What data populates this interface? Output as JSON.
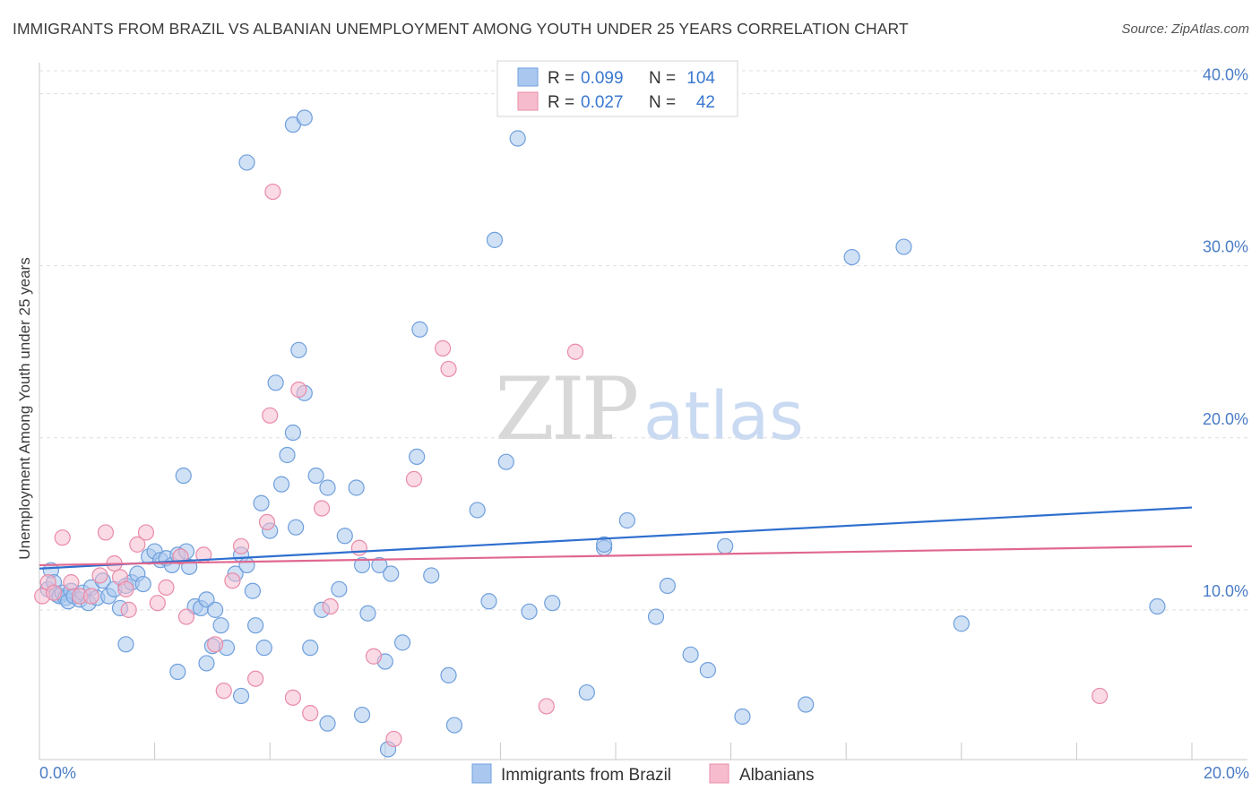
{
  "header": {
    "title": "IMMIGRANTS FROM BRAZIL VS ALBANIAN UNEMPLOYMENT AMONG YOUTH UNDER 25 YEARS CORRELATION CHART",
    "source": "Source: ZipAtlas.com"
  },
  "watermark": {
    "zip": "ZIP",
    "atlas": "atlas"
  },
  "stats": {
    "r_label": "R =",
    "n_label": "N =",
    "brazil": {
      "r": "0.099",
      "n": "104"
    },
    "albanians": {
      "r": "0.027",
      "n": "42"
    }
  },
  "legend": {
    "brazil": "Immigrants from Brazil",
    "albanians": "Albanians"
  },
  "colors": {
    "brazil_fill": "#aac8ef",
    "brazil_stroke": "#6f9fdc",
    "brazil_line": "#2f6fcf",
    "albanian_fill": "#f6bccd",
    "albanian_stroke": "#e98ba8",
    "albanian_line": "#e06890",
    "axis_label": "#4a7cc6"
  },
  "chart_data": {
    "type": "scatter",
    "title": "IMMIGRANTS FROM BRAZIL VS ALBANIAN UNEMPLOYMENT AMONG YOUTH UNDER 25 YEARS CORRELATION CHART",
    "xlabel": "",
    "ylabel": "Unemployment Among Youth under 25 years",
    "xlim": [
      0,
      20
    ],
    "ylim": [
      1.3,
      41.8
    ],
    "x_tick_labels": [
      "0.0%",
      "20.0%"
    ],
    "y_ticks": [
      {
        "value": 10,
        "label": "10.0%"
      },
      {
        "value": 20,
        "label": "20.0%"
      },
      {
        "value": 30,
        "label": "30.0%"
      },
      {
        "value": 40,
        "label": "40.0%"
      }
    ],
    "grid": true,
    "series": [
      {
        "name": "Immigrants from Brazil",
        "color": "#6f9fdc",
        "trend": {
          "x": [
            0,
            20
          ],
          "y": [
            12.4,
            15.95
          ]
        },
        "points": [
          [
            0.15,
            11.2
          ],
          [
            0.2,
            12.3
          ],
          [
            0.25,
            11.6
          ],
          [
            0.3,
            10.9
          ],
          [
            0.35,
            10.8
          ],
          [
            0.4,
            11.0
          ],
          [
            0.45,
            10.7
          ],
          [
            0.5,
            10.5
          ],
          [
            0.55,
            11.1
          ],
          [
            0.6,
            10.8
          ],
          [
            0.7,
            10.6
          ],
          [
            0.75,
            11.0
          ],
          [
            0.85,
            10.4
          ],
          [
            0.9,
            11.3
          ],
          [
            1.0,
            10.7
          ],
          [
            1.1,
            11.7
          ],
          [
            1.2,
            10.8
          ],
          [
            1.3,
            11.2
          ],
          [
            1.4,
            10.1
          ],
          [
            1.5,
            11.4
          ],
          [
            1.6,
            11.6
          ],
          [
            1.7,
            12.1
          ],
          [
            1.8,
            11.5
          ],
          [
            1.9,
            13.1
          ],
          [
            2.0,
            13.4
          ],
          [
            2.1,
            12.9
          ],
          [
            2.2,
            13.0
          ],
          [
            2.3,
            12.6
          ],
          [
            2.4,
            13.2
          ],
          [
            2.5,
            17.8
          ],
          [
            2.55,
            13.4
          ],
          [
            2.6,
            12.5
          ],
          [
            2.7,
            10.2
          ],
          [
            2.8,
            10.1
          ],
          [
            2.9,
            10.6
          ],
          [
            3.05,
            10.0
          ],
          [
            3.15,
            9.1
          ],
          [
            3.25,
            7.8
          ],
          [
            3.4,
            12.1
          ],
          [
            3.5,
            13.2
          ],
          [
            3.6,
            12.6
          ],
          [
            3.7,
            11.1
          ],
          [
            3.75,
            9.1
          ],
          [
            3.85,
            16.2
          ],
          [
            4.0,
            14.6
          ],
          [
            4.1,
            23.2
          ],
          [
            4.2,
            17.3
          ],
          [
            4.3,
            19.0
          ],
          [
            4.4,
            20.3
          ],
          [
            4.45,
            14.8
          ],
          [
            4.5,
            25.1
          ],
          [
            4.6,
            22.6
          ],
          [
            4.7,
            7.8
          ],
          [
            4.8,
            17.8
          ],
          [
            4.9,
            10.0
          ],
          [
            5.0,
            17.1
          ],
          [
            5.2,
            11.2
          ],
          [
            5.3,
            14.3
          ],
          [
            5.5,
            17.1
          ],
          [
            5.6,
            12.6
          ],
          [
            5.7,
            9.8
          ],
          [
            5.9,
            12.6
          ],
          [
            6.0,
            7.0
          ],
          [
            6.1,
            12.1
          ],
          [
            6.3,
            8.1
          ],
          [
            6.55,
            18.9
          ],
          [
            6.6,
            26.3
          ],
          [
            6.8,
            12.0
          ],
          [
            7.1,
            6.2
          ],
          [
            7.2,
            3.3
          ],
          [
            7.6,
            15.8
          ],
          [
            7.8,
            10.5
          ],
          [
            7.9,
            31.5
          ],
          [
            8.1,
            18.6
          ],
          [
            8.3,
            37.4
          ],
          [
            8.5,
            9.9
          ],
          [
            8.9,
            10.4
          ],
          [
            9.5,
            5.2
          ],
          [
            9.8,
            13.6
          ],
          [
            9.8,
            13.8
          ],
          [
            10.2,
            15.2
          ],
          [
            10.7,
            9.6
          ],
          [
            10.9,
            11.4
          ],
          [
            11.3,
            7.4
          ],
          [
            11.6,
            6.5
          ],
          [
            11.9,
            13.7
          ],
          [
            12.2,
            3.8
          ],
          [
            13.3,
            4.5
          ],
          [
            14.1,
            30.5
          ],
          [
            15.0,
            31.1
          ],
          [
            16.0,
            9.2
          ],
          [
            19.4,
            10.2
          ],
          [
            4.4,
            38.2
          ],
          [
            4.6,
            38.6
          ],
          [
            3.6,
            36.0
          ],
          [
            2.4,
            6.4
          ],
          [
            2.9,
            6.9
          ],
          [
            3.0,
            7.9
          ],
          [
            1.5,
            8.0
          ],
          [
            3.5,
            5.0
          ],
          [
            5.0,
            3.4
          ],
          [
            5.6,
            3.9
          ],
          [
            6.05,
            1.9
          ],
          [
            3.9,
            7.8
          ]
        ]
      },
      {
        "name": "Albanians",
        "color": "#e98ba8",
        "trend": {
          "x": [
            0,
            20
          ],
          "y": [
            12.6,
            13.7
          ]
        },
        "points": [
          [
            0.05,
            10.8
          ],
          [
            0.15,
            11.6
          ],
          [
            0.25,
            11.0
          ],
          [
            0.4,
            14.2
          ],
          [
            0.55,
            11.6
          ],
          [
            0.7,
            10.8
          ],
          [
            0.9,
            10.8
          ],
          [
            1.05,
            12.0
          ],
          [
            1.15,
            14.5
          ],
          [
            1.3,
            12.7
          ],
          [
            1.4,
            11.9
          ],
          [
            1.55,
            10.0
          ],
          [
            1.7,
            13.8
          ],
          [
            1.85,
            14.5
          ],
          [
            2.05,
            10.4
          ],
          [
            2.2,
            11.3
          ],
          [
            2.45,
            13.1
          ],
          [
            2.55,
            9.6
          ],
          [
            2.85,
            13.2
          ],
          [
            3.05,
            8.0
          ],
          [
            3.2,
            5.3
          ],
          [
            3.35,
            11.7
          ],
          [
            3.5,
            13.7
          ],
          [
            3.75,
            6.0
          ],
          [
            3.95,
            15.1
          ],
          [
            4.0,
            21.3
          ],
          [
            4.05,
            34.3
          ],
          [
            4.4,
            4.9
          ],
          [
            4.5,
            22.8
          ],
          [
            4.7,
            4.0
          ],
          [
            4.9,
            15.9
          ],
          [
            5.05,
            10.2
          ],
          [
            5.55,
            13.6
          ],
          [
            5.8,
            7.3
          ],
          [
            6.15,
            2.5
          ],
          [
            6.5,
            17.6
          ],
          [
            7.0,
            25.2
          ],
          [
            7.1,
            24.0
          ],
          [
            8.8,
            4.4
          ],
          [
            9.3,
            25.0
          ],
          [
            18.4,
            5.0
          ],
          [
            1.5,
            11.2
          ]
        ]
      }
    ]
  }
}
